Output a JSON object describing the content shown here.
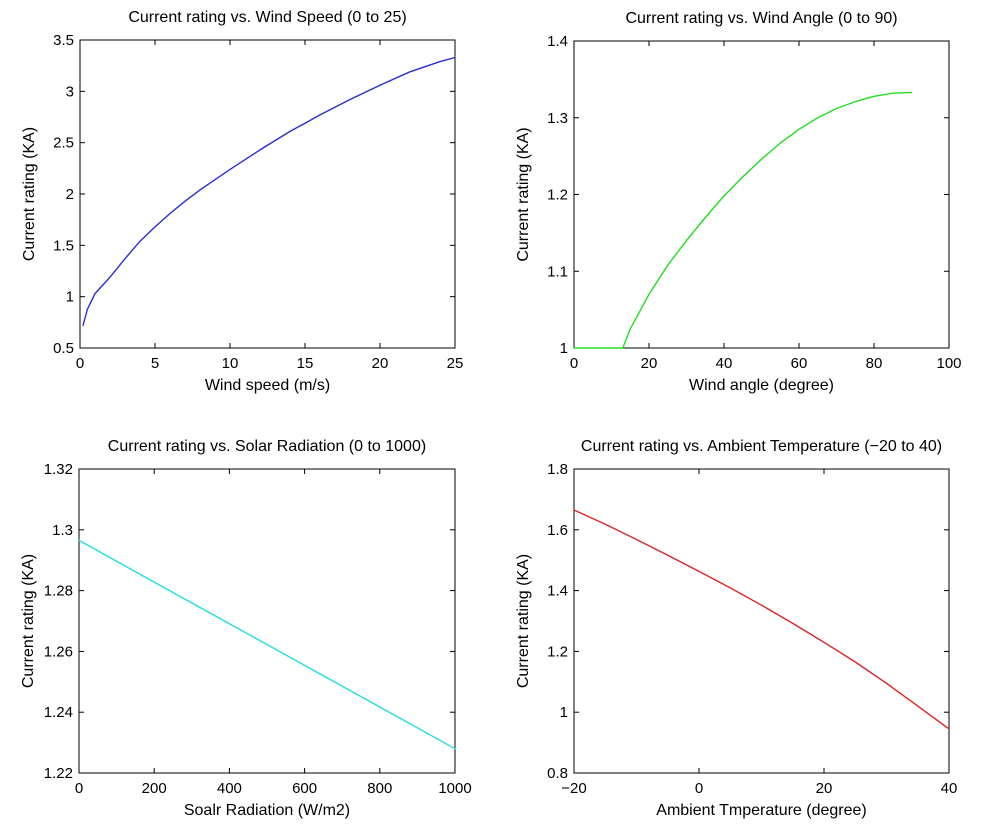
{
  "chart_data": [
    {
      "type": "line",
      "title": "Current rating vs. Wind Speed (0 to 25)",
      "xlabel": "Wind speed (m/s)",
      "ylabel": "Current rating (KA)",
      "xlim": [
        0,
        25
      ],
      "ylim": [
        0.5,
        3.5
      ],
      "xticks": [
        0,
        5,
        10,
        15,
        20,
        25
      ],
      "xtick_labels": [
        "0",
        "5",
        "10",
        "15",
        "20",
        "25"
      ],
      "yticks": [
        0.5,
        1,
        1.5,
        2,
        2.5,
        3,
        3.5
      ],
      "ytick_labels": [
        "0.5",
        "1",
        "1.5",
        "2",
        "2.5",
        "3",
        "3.5"
      ],
      "grid": false,
      "color": "#2b2bd6",
      "series": [
        {
          "x": [
            0.2,
            0.5,
            1,
            1.5,
            2,
            3,
            4,
            5,
            6,
            7,
            8,
            10,
            12,
            14,
            15,
            16,
            18,
            20,
            22,
            24,
            25
          ],
          "values": [
            0.72,
            0.88,
            1.03,
            1.11,
            1.19,
            1.37,
            1.54,
            1.68,
            1.81,
            1.93,
            2.04,
            2.24,
            2.43,
            2.61,
            2.69,
            2.77,
            2.92,
            3.06,
            3.19,
            3.29,
            3.33
          ]
        }
      ]
    },
    {
      "type": "line",
      "title": "Current rating vs. Wind Angle (0 to 90)",
      "xlabel": "Wind angle (degree)",
      "ylabel": "Current rating (KA)",
      "xlim": [
        0,
        100
      ],
      "ylim": [
        1,
        1.4
      ],
      "xticks": [
        0,
        20,
        40,
        60,
        80,
        100
      ],
      "xtick_labels": [
        "0",
        "20",
        "40",
        "60",
        "80",
        "100"
      ],
      "yticks": [
        1,
        1.1,
        1.2,
        1.3,
        1.4
      ],
      "ytick_labels": [
        "1",
        "1.1",
        "1.2",
        "1.3",
        "1.4"
      ],
      "grid": false,
      "color": "#22dd22",
      "series": [
        {
          "x": [
            0,
            5,
            10,
            13,
            15,
            20,
            25,
            30,
            35,
            40,
            45,
            50,
            55,
            60,
            65,
            70,
            75,
            80,
            85,
            90
          ],
          "values": [
            1.0,
            1.0,
            1.0,
            1.0,
            1.025,
            1.07,
            1.108,
            1.14,
            1.17,
            1.198,
            1.223,
            1.246,
            1.267,
            1.285,
            1.3,
            1.312,
            1.321,
            1.328,
            1.332,
            1.333
          ]
        }
      ]
    },
    {
      "type": "line",
      "title": "Current rating vs. Solar Radiation (0 to 1000)",
      "xlabel": "Soalr Radiation (W/m2)",
      "ylabel": "Current rating (KA)",
      "xlim": [
        0,
        1000
      ],
      "ylim": [
        1.22,
        1.32
      ],
      "xticks": [
        0,
        200,
        400,
        600,
        800,
        1000
      ],
      "xtick_labels": [
        "0",
        "200",
        "400",
        "600",
        "800",
        "1000"
      ],
      "yticks": [
        1.22,
        1.24,
        1.26,
        1.28,
        1.3,
        1.32
      ],
      "ytick_labels": [
        "1.22",
        "1.24",
        "1.26",
        "1.28",
        "1.3",
        "1.32"
      ],
      "grid": false,
      "color": "#22dddd",
      "series": [
        {
          "x": [
            0,
            200,
            400,
            600,
            800,
            1000
          ],
          "values": [
            1.2965,
            1.2828,
            1.2691,
            1.2554,
            1.2417,
            1.228
          ]
        }
      ]
    },
    {
      "type": "line",
      "title": "Current rating vs. Ambient Temperature (−20 to 40)",
      "xlabel": "Ambient Tmperature (degree)",
      "ylabel": "Current rating (KA)",
      "xlim": [
        -20,
        40
      ],
      "ylim": [
        0.8,
        1.8
      ],
      "xticks": [
        -20,
        0,
        20,
        40
      ],
      "xtick_labels": [
        "−20",
        "0",
        "20",
        "40"
      ],
      "yticks": [
        0.8,
        1,
        1.2,
        1.4,
        1.6,
        1.8
      ],
      "ytick_labels": [
        "0.8",
        "1",
        "1.2",
        "1.4",
        "1.6",
        "1.8"
      ],
      "grid": false,
      "color": "#dd2222",
      "series": [
        {
          "x": [
            -20,
            -15,
            -10,
            -5,
            0,
            5,
            10,
            15,
            20,
            25,
            30,
            35,
            40
          ],
          "values": [
            1.665,
            1.618,
            1.568,
            1.516,
            1.463,
            1.409,
            1.352,
            1.292,
            1.23,
            1.165,
            1.095,
            1.02,
            0.945
          ]
        }
      ]
    }
  ]
}
